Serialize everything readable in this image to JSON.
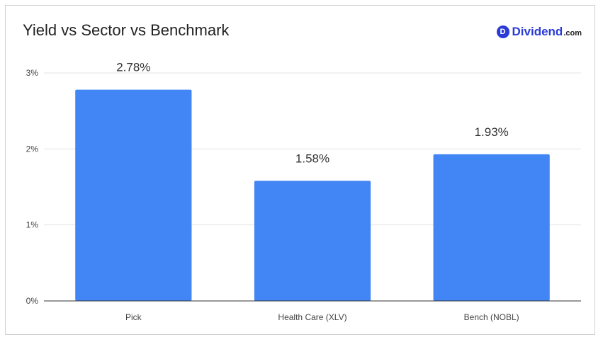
{
  "header": {
    "title": "Yield vs Sector vs Benchmark",
    "brand_icon_letter": "D",
    "brand_name": "Dividend",
    "brand_tld": ".com"
  },
  "colors": {
    "bar": "#4285f4",
    "grid": "#e3e3e3",
    "axis": "#333333",
    "text": "#444444",
    "brand": "#2a3bd6"
  },
  "chart_data": {
    "type": "bar",
    "title": "Yield vs Sector vs Benchmark",
    "categories": [
      "Pick",
      "Health Care (XLV)",
      "Bench (NOBL)"
    ],
    "values": [
      2.78,
      1.58,
      1.93
    ],
    "data_labels": [
      "2.78%",
      "1.58%",
      "1.93%"
    ],
    "yticks": [
      0,
      1,
      2,
      3
    ],
    "ytick_labels": [
      "0%",
      "1%",
      "2%",
      "3%"
    ],
    "ylim": [
      0,
      3
    ],
    "grid": true,
    "legend": "none"
  }
}
